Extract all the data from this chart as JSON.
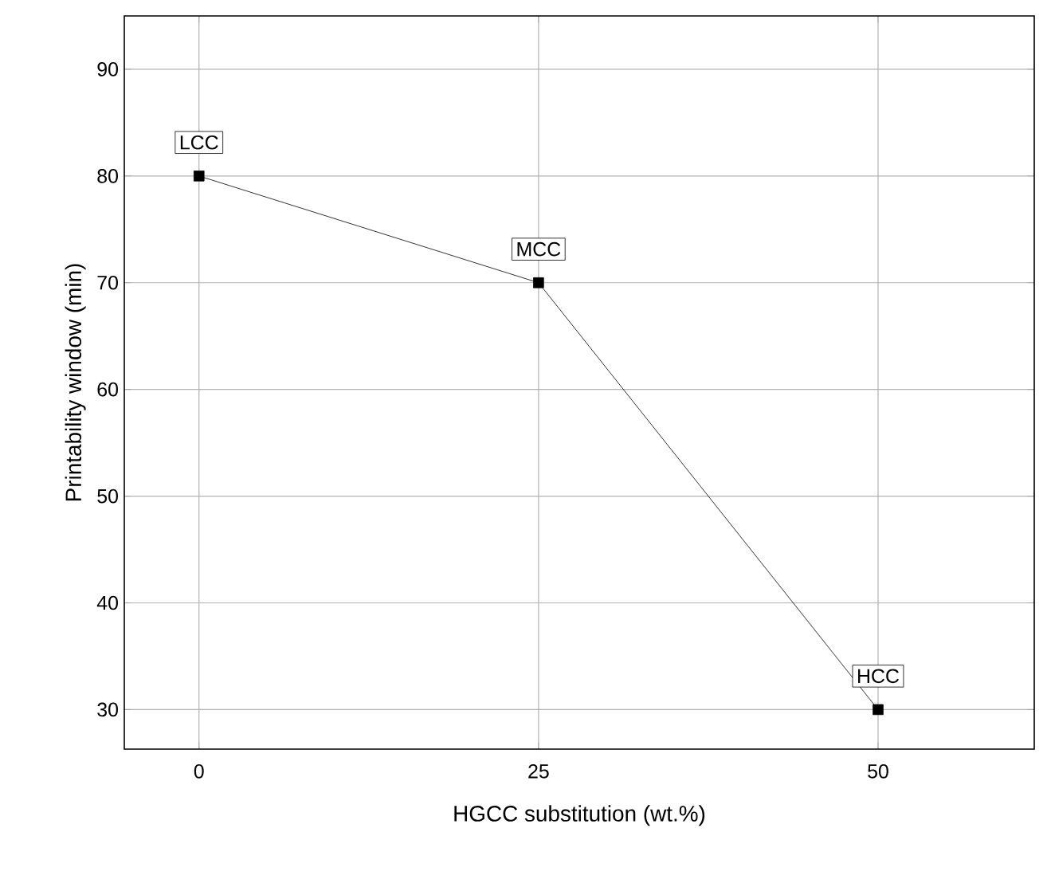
{
  "chart_data": {
    "type": "line",
    "xlabel": "HGCC substitution (wt.%)",
    "ylabel": "Printability window (min)",
    "x": [
      0,
      25,
      50
    ],
    "series": [
      {
        "color": "#000000",
        "values": [
          80,
          70,
          30
        ]
      }
    ],
    "xlim": [
      -5.5,
      61.5
    ],
    "xticks": [
      0,
      25,
      50
    ],
    "ylim": [
      26.3,
      95
    ],
    "yticks": [
      30,
      40,
      50,
      60,
      70,
      80,
      90
    ],
    "grid": true,
    "marker": "square",
    "line_style": "solid",
    "annotations": [
      {
        "text": "LCC",
        "x": 0,
        "y": 80
      },
      {
        "text": "MCC",
        "x": 25,
        "y": 70
      },
      {
        "text": "HCC",
        "x": 50,
        "y": 30
      }
    ]
  }
}
